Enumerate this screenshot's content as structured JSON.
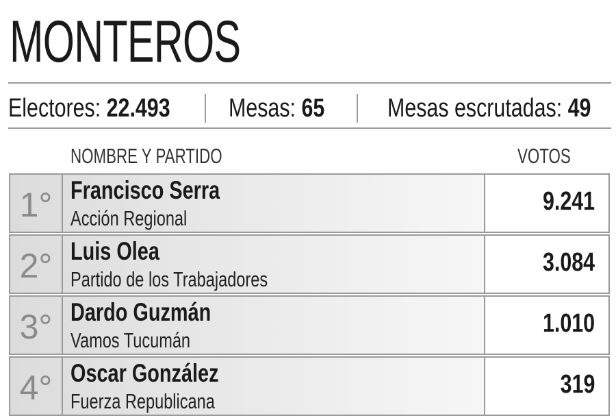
{
  "header": {
    "title": "MONTEROS"
  },
  "stats": [
    {
      "label": "Electores:",
      "value": "22.493"
    },
    {
      "label": "Mesas:",
      "value": "65"
    },
    {
      "label": "Mesas escrutadas:",
      "value": "49"
    }
  ],
  "table": {
    "columns": [
      "NOMBRE Y PARTIDO",
      "VOTOS"
    ],
    "rows": [
      {
        "rank": "1°",
        "name": "Francisco Serra",
        "party": "Acción Regional",
        "votes": "9.241"
      },
      {
        "rank": "2°",
        "name": "Luis Olea",
        "party": "Partido de los Trabajadores",
        "votes": "3.084"
      },
      {
        "rank": "3°",
        "name": "Dardo Guzmán",
        "party": "Vamos Tucumán",
        "votes": "1.010"
      },
      {
        "rank": "4°",
        "name": "Oscar González",
        "party": "Fuerza Republicana",
        "votes": "319"
      }
    ]
  }
}
